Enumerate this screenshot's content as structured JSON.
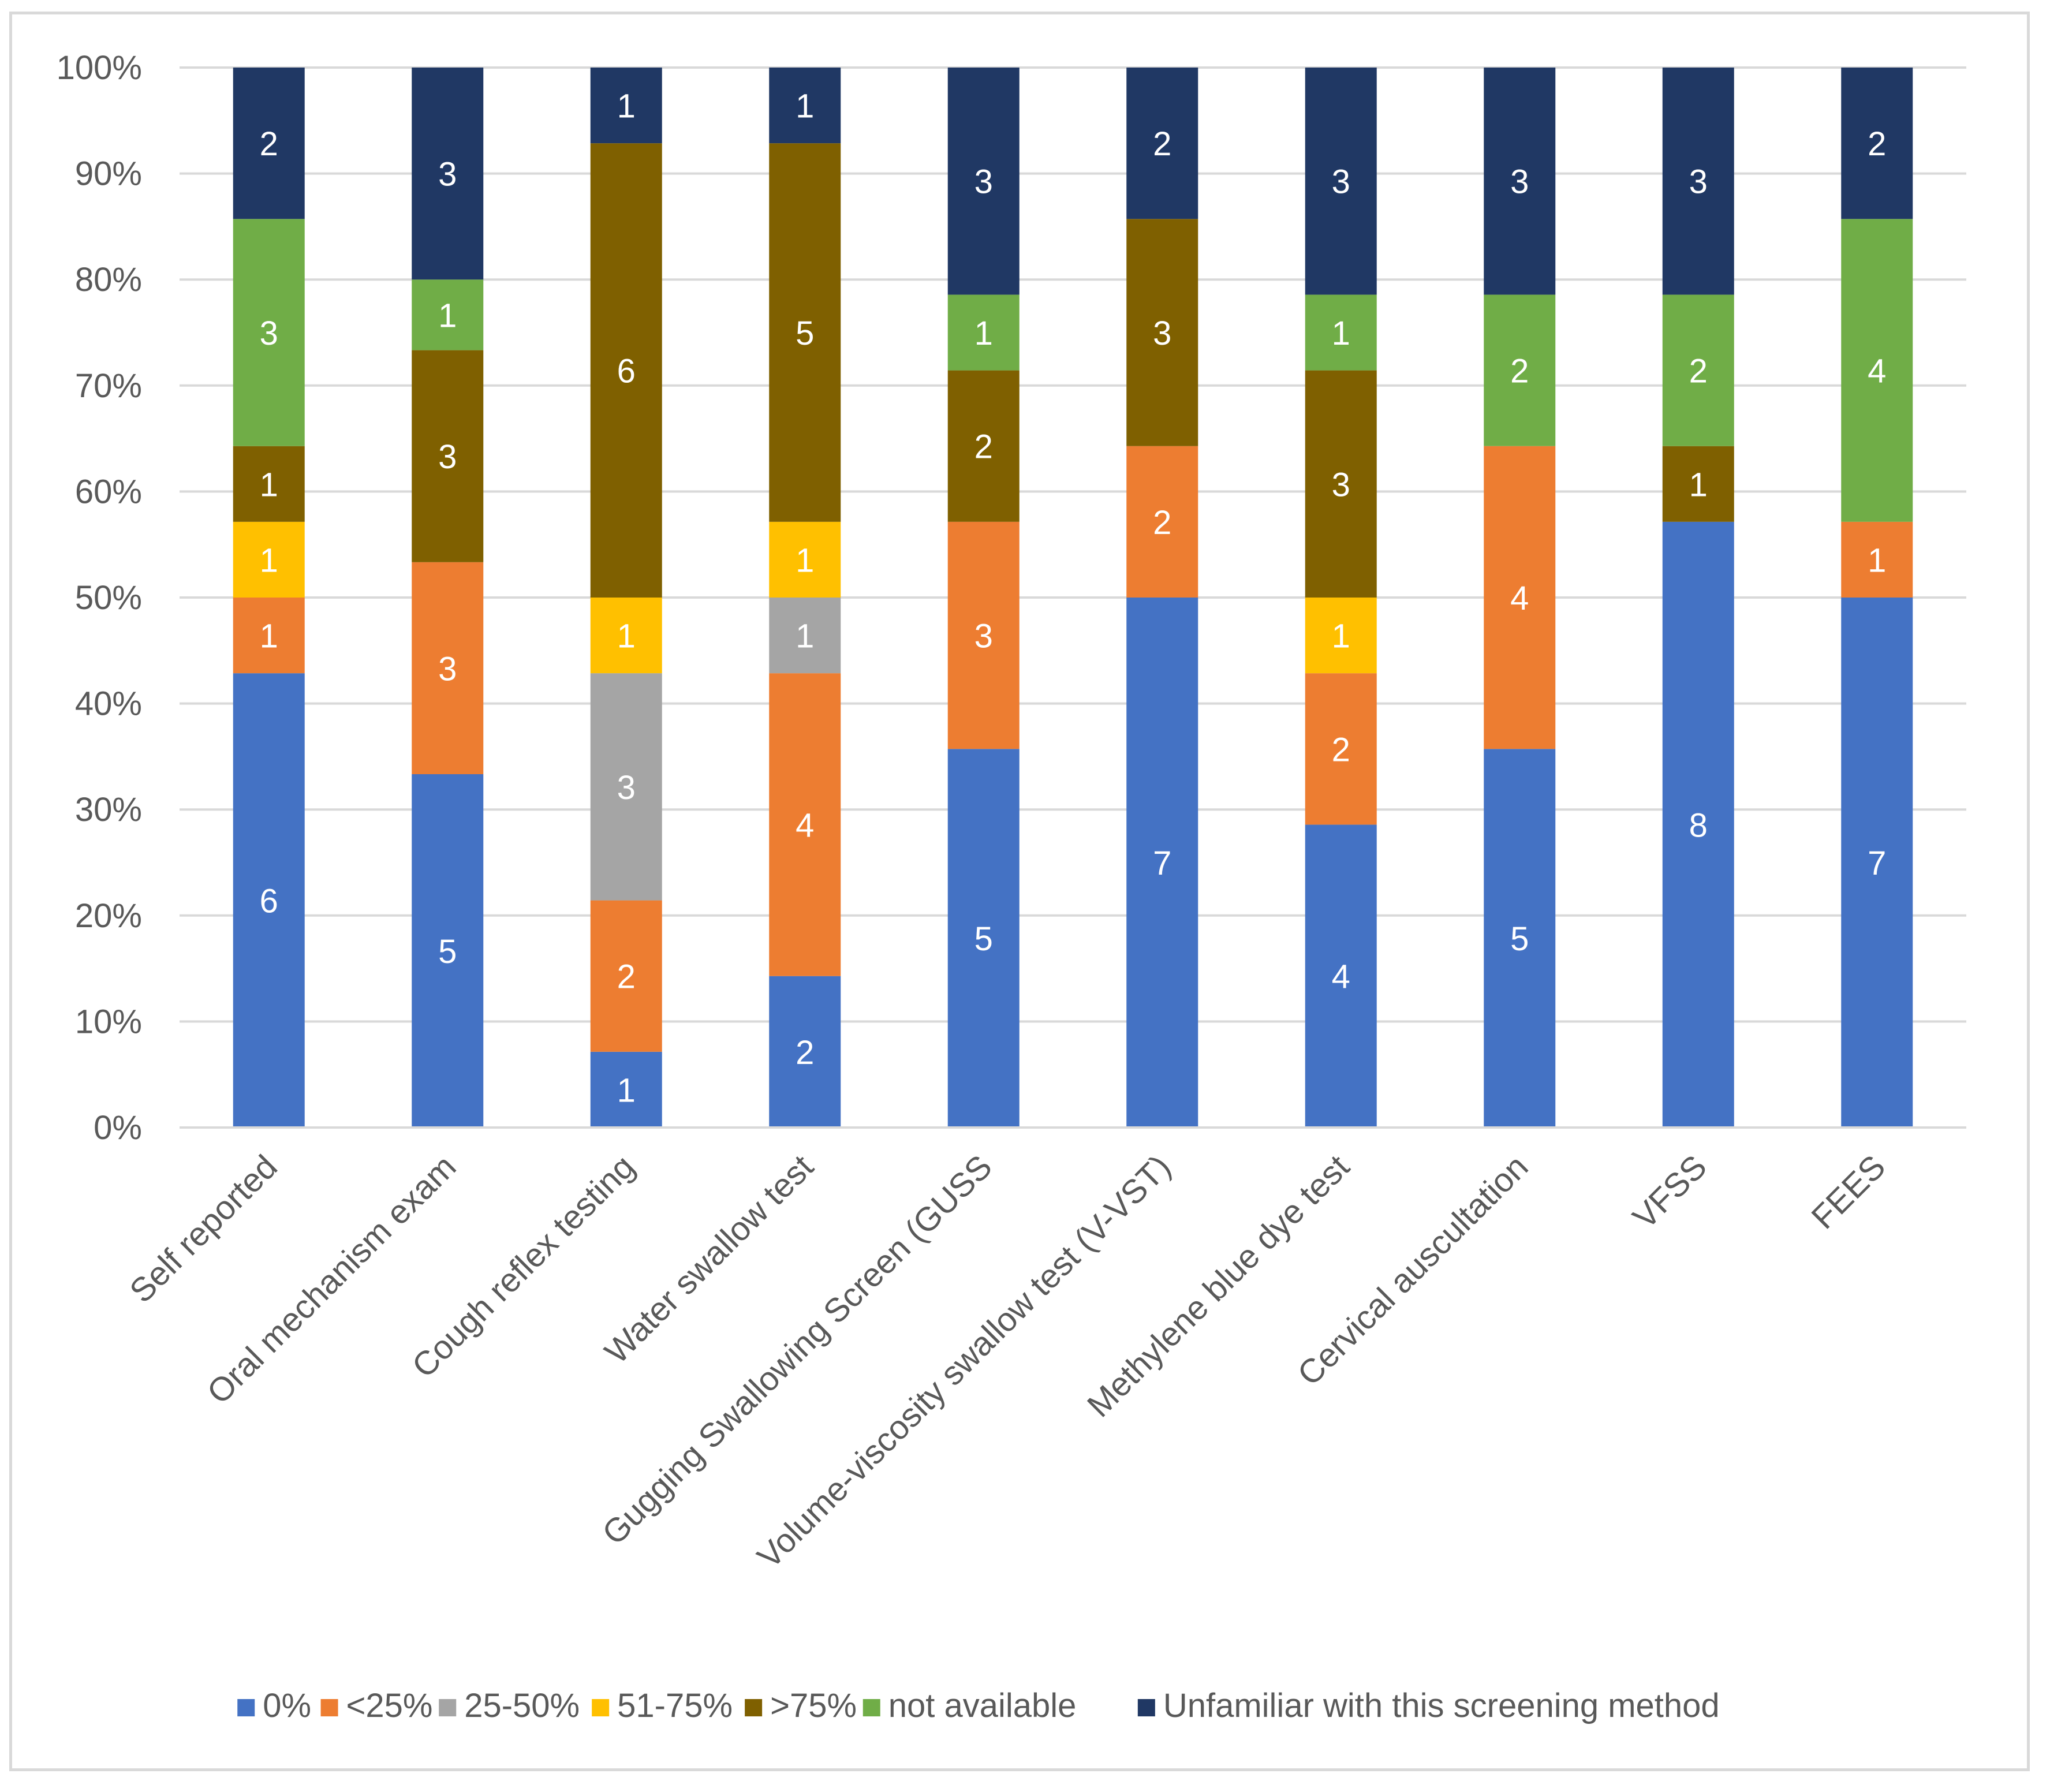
{
  "chart_data": {
    "type": "bar",
    "stacked": true,
    "normalized": true,
    "categories": [
      "Self reported",
      "Oral mechanism exam",
      "Cough reflex testing",
      "Water swallow test",
      "Gugging Swallowing Screen (GUSS",
      "Volume-viscosity swallow test (V-VST)",
      "Methylene blue dye test",
      "Cervical auscultation",
      "VFSS",
      "FEES"
    ],
    "series": [
      {
        "name": "0%",
        "color": "#4472c4",
        "values": [
          6,
          5,
          1,
          2,
          5,
          7,
          4,
          5,
          8,
          7
        ]
      },
      {
        "name": "<25%",
        "color": "#ed7d31",
        "values": [
          1,
          3,
          2,
          4,
          3,
          2,
          2,
          4,
          0,
          1
        ]
      },
      {
        "name": "25-50%",
        "color": "#a5a5a5",
        "values": [
          0,
          0,
          3,
          1,
          0,
          0,
          0,
          0,
          0,
          0
        ]
      },
      {
        "name": "51-75%",
        "color": "#ffc000",
        "values": [
          1,
          0,
          1,
          1,
          0,
          0,
          1,
          0,
          0,
          0
        ]
      },
      {
        "name": ">75%",
        "color": "#7f6000",
        "values": [
          1,
          3,
          6,
          5,
          2,
          3,
          3,
          0,
          1,
          0
        ]
      },
      {
        "name": "not available",
        "color": "#70ad47",
        "values": [
          3,
          1,
          0,
          0,
          1,
          0,
          1,
          2,
          2,
          4
        ]
      },
      {
        "name": "Unfamiliar with this screening method",
        "color": "#203864",
        "values": [
          2,
          3,
          1,
          1,
          3,
          2,
          3,
          3,
          3,
          2
        ]
      }
    ],
    "y_ticks": [
      "0%",
      "10%",
      "20%",
      "30%",
      "40%",
      "50%",
      "60%",
      "70%",
      "80%",
      "90%",
      "100%"
    ],
    "ylim": [
      0,
      100
    ],
    "grid": true,
    "legend_position": "bottom",
    "title": "",
    "xlabel": "",
    "ylabel": ""
  }
}
